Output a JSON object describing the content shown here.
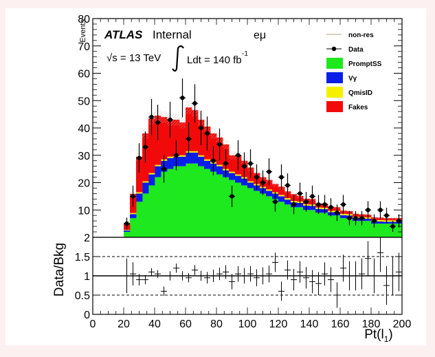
{
  "chart_data": [
    {
      "type": "bar",
      "panel": "main",
      "stacked": true,
      "title": "",
      "labels": {
        "experiment": "ATLAS",
        "status": "Internal",
        "channel": "eμ",
        "energy": "√s = 13 TeV",
        "lumi": "Ldt = 140 fb",
        "lumi_exp": "-1"
      },
      "ylabel": "Events",
      "ylim": [
        0,
        80
      ],
      "yticks": [
        "10",
        "20",
        "30",
        "40",
        "50",
        "60",
        "70",
        "80"
      ],
      "legend": {
        "position": "top-right",
        "entries": [
          "non-res",
          "Data",
          "PromptSS",
          "Vγ",
          "QmisID",
          "Fakes"
        ]
      },
      "colors": {
        "PromptSS": "#1ee81e",
        "Vγ": "#0b1ee8",
        "QmisID": "#f5f000",
        "Fakes": "#f20a0a",
        "non-res": "#d8cfc2",
        "Data": "#000000"
      },
      "bin_width": 4,
      "x": [
        20,
        24,
        28,
        32,
        36,
        40,
        44,
        48,
        52,
        56,
        60,
        64,
        68,
        72,
        76,
        80,
        84,
        88,
        92,
        96,
        100,
        104,
        108,
        112,
        116,
        120,
        124,
        128,
        132,
        136,
        140,
        144,
        148,
        152,
        156,
        160,
        164,
        168,
        172,
        176,
        180,
        184,
        188,
        192,
        196
      ],
      "series": [
        {
          "name": "PromptSS",
          "values": [
            2,
            7,
            13,
            16,
            19,
            22,
            24,
            25,
            26,
            26,
            27,
            27,
            26,
            25,
            24,
            23,
            22,
            21,
            20,
            19,
            18,
            17,
            16,
            15,
            14,
            13,
            12,
            11,
            11,
            10,
            10,
            9,
            9,
            8,
            8,
            7,
            7,
            6,
            6,
            6,
            5,
            5,
            5,
            5,
            5
          ]
        },
        {
          "name": "Vγ",
          "values": [
            0.5,
            1.5,
            3,
            4,
            4,
            4,
            4,
            4,
            3.5,
            3.5,
            4,
            4,
            3.5,
            3,
            3,
            3,
            2.5,
            2.5,
            2.5,
            2.5,
            2,
            2,
            2,
            2,
            2,
            2,
            1.8,
            1.8,
            1.6,
            1.6,
            1.5,
            1.4,
            1.3,
            1.2,
            1.2,
            1.1,
            1,
            1,
            0.9,
            0.8,
            0.8,
            0.8,
            0.7,
            0.7,
            0.7
          ]
        },
        {
          "name": "QmisID",
          "values": [
            0.2,
            0.4,
            0.5,
            0.5,
            0.5,
            0.5,
            0.5,
            0.5,
            0.5,
            0.5,
            0.5,
            0.5,
            0.5,
            0.5,
            0.5,
            0.5,
            0.5,
            0.5,
            0.5,
            0.5,
            0.5,
            0.5,
            0.5,
            0.5,
            0.5,
            0.5,
            0.5,
            0.5,
            0.5,
            0.5,
            0.5,
            0.5,
            0.5,
            0.5,
            0.5,
            0.5,
            0.5,
            0.5,
            0.5,
            0.5,
            0.5,
            0.5,
            0.5,
            0.5,
            0.5
          ]
        },
        {
          "name": "Fakes",
          "values": [
            2.5,
            7,
            13,
            17.5,
            20,
            18,
            15.5,
            13.5,
            13,
            12,
            16,
            15,
            13,
            12,
            10.5,
            10,
            9,
            6,
            7,
            6,
            5,
            4,
            3.5,
            3.5,
            3,
            3,
            2.5,
            2.5,
            2,
            2,
            2,
            1.5,
            1.5,
            1.5,
            1.3,
            1.2,
            1.1,
            1.1,
            1,
            1,
            1,
            0.9,
            0.8,
            0.8,
            0.8
          ]
        }
      ],
      "data": {
        "name": "Data",
        "x": [
          22,
          26,
          30,
          34,
          38,
          42,
          46,
          50,
          54,
          58,
          62,
          66,
          70,
          74,
          78,
          82,
          86,
          90,
          94,
          98,
          102,
          106,
          110,
          114,
          118,
          122,
          126,
          130,
          134,
          138,
          142,
          146,
          150,
          154,
          158,
          162,
          166,
          170,
          174,
          178,
          182,
          186,
          190,
          194,
          198
        ],
        "y": [
          5,
          15,
          29,
          33,
          44,
          42,
          25,
          43,
          30,
          51,
          36,
          49,
          40,
          38,
          28,
          34,
          27,
          15,
          30,
          26,
          27,
          22,
          20,
          24,
          13,
          22,
          19,
          12,
          16,
          13,
          15,
          12,
          12,
          11,
          9,
          12,
          7,
          7,
          7,
          10,
          6,
          10,
          8,
          4,
          6
        ],
        "err": [
          2.2,
          3.9,
          5.4,
          5.7,
          6.6,
          6.5,
          5,
          6.6,
          5.5,
          7.1,
          6,
          7,
          6.3,
          6.2,
          5.3,
          5.8,
          5.2,
          3.9,
          5.5,
          5.1,
          5.2,
          4.7,
          4.5,
          4.9,
          3.6,
          4.7,
          4.4,
          3.5,
          4,
          3.6,
          3.9,
          3.5,
          3.5,
          3.3,
          3,
          3.5,
          2.6,
          2.6,
          2.6,
          3.2,
          2.4,
          3.2,
          2.8,
          2,
          2.4
        ]
      }
    },
    {
      "type": "scatter",
      "panel": "ratio",
      "ylabel": "Data/Bkg",
      "xlabel": "Pt(l",
      "xlabel_sub": "1",
      "xlabel_close": ")",
      "xlim": [
        0,
        200
      ],
      "ylim": [
        0,
        2
      ],
      "xticks": [
        "0",
        "20",
        "40",
        "60",
        "80",
        "100",
        "120",
        "140",
        "160",
        "180",
        "200"
      ],
      "yticks": [
        "0",
        "0.5",
        "1",
        "1.5",
        "2"
      ],
      "reference_lines": [
        0.5,
        1,
        1.5
      ],
      "x": [
        22,
        26,
        30,
        34,
        38,
        42,
        46,
        50,
        54,
        58,
        62,
        66,
        70,
        74,
        78,
        82,
        86,
        90,
        94,
        98,
        102,
        106,
        110,
        114,
        118,
        122,
        126,
        130,
        134,
        138,
        142,
        146,
        150,
        154,
        158,
        162,
        166,
        170,
        174,
        178,
        182,
        186,
        190,
        194,
        198
      ],
      "y": [
        1.0,
        1.05,
        0.9,
        0.9,
        1.1,
        1.05,
        0.6,
        1.0,
        1.2,
        1.0,
        0.95,
        1.15,
        1.0,
        0.95,
        1.0,
        1.05,
        1.1,
        0.85,
        1.05,
        1.0,
        1.05,
        0.95,
        1.0,
        1.05,
        1.35,
        0.6,
        1.15,
        0.9,
        1.1,
        0.95,
        0.85,
        0.8,
        1.05,
        0.9,
        0.5,
        1.2,
        1.0,
        1.0,
        1.05,
        1.45,
        1.0,
        1.6,
        0.75,
        1.0,
        1.1
      ],
      "err": [
        0.45,
        0.3,
        0.15,
        0.12,
        0.1,
        0.1,
        0.12,
        0.12,
        0.12,
        0.12,
        0.12,
        0.13,
        0.13,
        0.15,
        0.16,
        0.16,
        0.18,
        0.2,
        0.2,
        0.2,
        0.2,
        0.22,
        0.22,
        0.22,
        0.25,
        0.25,
        0.25,
        0.28,
        0.28,
        0.28,
        0.3,
        0.3,
        0.3,
        0.32,
        0.33,
        0.35,
        0.38,
        0.38,
        0.4,
        0.45,
        0.45,
        0.5,
        0.5,
        0.5,
        0.5
      ]
    }
  ]
}
